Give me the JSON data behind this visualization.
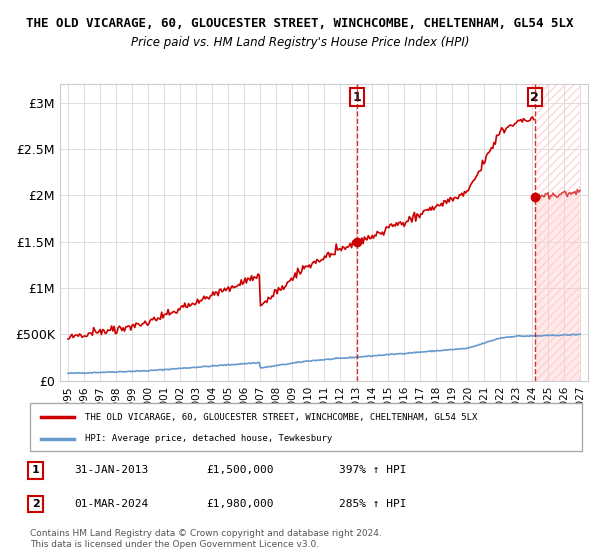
{
  "title": "THE OLD VICARAGE, 60, GLOUCESTER STREET, WINCHCOMBE, CHELTENHAM, GL54 5LX",
  "subtitle": "Price paid vs. HM Land Registry's House Price Index (HPI)",
  "property_line_color": "#cc0000",
  "hpi_line_color": "#6699cc",
  "background_color": "#ffffff",
  "plot_bg_color": "#ffffff",
  "grid_color": "#dddddd",
  "dashed_line_color": "#cc0000",
  "hatch_color": "#ddaaaa",
  "ylim": [
    0,
    3200000
  ],
  "yticks": [
    0,
    500000,
    1000000,
    1500000,
    2000000,
    2500000,
    3000000
  ],
  "ytick_labels": [
    "£0",
    "£500K",
    "£1M",
    "£1.5M",
    "£2M",
    "£2.5M",
    "£3M"
  ],
  "xlim_start": 1994.5,
  "xlim_end": 2027.5,
  "xticks": [
    1995,
    1996,
    1997,
    1998,
    1999,
    2000,
    2001,
    2002,
    2003,
    2004,
    2005,
    2006,
    2007,
    2008,
    2009,
    2010,
    2011,
    2012,
    2013,
    2014,
    2015,
    2016,
    2017,
    2018,
    2019,
    2020,
    2021,
    2022,
    2023,
    2024,
    2025,
    2026,
    2027
  ],
  "sale1_x": 2013.08,
  "sale1_y": 1500000,
  "sale1_label": "1",
  "sale2_x": 2024.17,
  "sale2_y": 1980000,
  "sale2_label": "2",
  "legend_property": "THE OLD VICARAGE, 60, GLOUCESTER STREET, WINCHCOMBE, CHELTENHAM, GL54 5LX",
  "legend_hpi": "HPI: Average price, detached house, Tewkesbury",
  "table_rows": [
    {
      "label": "1",
      "date": "31-JAN-2013",
      "price": "£1,500,000",
      "hpi": "397% ↑ HPI"
    },
    {
      "label": "2",
      "date": "01-MAR-2024",
      "price": "£1,980,000",
      "hpi": "285% ↑ HPI"
    }
  ],
  "footer": "Contains HM Land Registry data © Crown copyright and database right 2024.\nThis data is licensed under the Open Government Licence v3.0."
}
